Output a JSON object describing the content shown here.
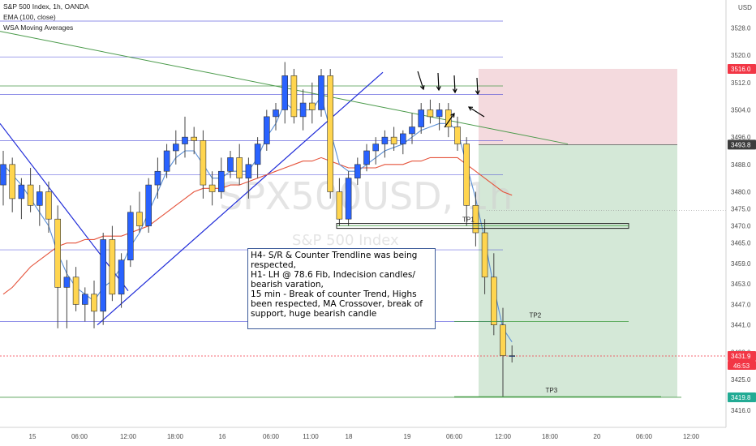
{
  "legend": {
    "title": "S&P 500 Index, 1h, OANDA",
    "line2": "EMA (100, close)",
    "line3": "WSA Moving Averages"
  },
  "watermark": {
    "symbol": "SPX500USD, 1h",
    "name": "S&P 500 Index"
  },
  "currency": "USD",
  "note_lines": [
    "H4- S/R & Counter Trendline was being",
    "respected,",
    "H1- LH @ 78.6 Fib, Indecision candles/",
    "bearish varation,",
    "15 min - Break of counter Trend, Highs",
    "been respected, MA Crossover, break of",
    "support, huge bearish candle"
  ],
  "price_tags": [
    {
      "label": "3516.0",
      "value": 3516.0,
      "bg": "#f23645",
      "fg": "#ffffff"
    },
    {
      "label": "3493.8",
      "value": 3493.8,
      "bg": "#3c3c3c",
      "fg": "#ffffff"
    },
    {
      "label": "3431.9",
      "value": 3431.9,
      "bg": "#f23645",
      "fg": "#ffffff",
      "sub": "46:53"
    },
    {
      "label": "3419.8",
      "value": 3419.8,
      "bg": "#22ab94",
      "fg": "#ffffff"
    }
  ],
  "targets": [
    {
      "label": "TP1",
      "value": 3470.0
    },
    {
      "label": "TP2",
      "value": 3442.0
    },
    {
      "label": "TP3",
      "value": 3420.0
    }
  ],
  "colors": {
    "bull_body": "#2962ff",
    "bear_body": "#ffd54f",
    "wick": "#444444",
    "profit_zone": "#cfe6d3",
    "loss_zone": "#f3d6da",
    "ema": "#e5533b",
    "wsa": "#5b8fd6",
    "counter_trend": "#4a9a4a",
    "trendline": "#1f2bd8",
    "hline": "#3b3bd6"
  },
  "chart_data": {
    "type": "candlestick",
    "ylim": [
      3411,
      3530
    ],
    "y_ticks": [
      3416.0,
      3425.0,
      3433.0,
      3441.0,
      3447.0,
      3453.0,
      3459.0,
      3465.0,
      3470.0,
      3475.0,
      3480.0,
      3488.0,
      3496.0,
      3504.0,
      3512.0,
      3520.0,
      3528.0
    ],
    "x_ticks": [
      "15",
      "06:00",
      "12:00",
      "18:00",
      "16",
      "06:00",
      "11:00",
      "18",
      "19",
      "06:00",
      "12:00",
      "18:00",
      "20",
      "06:00",
      "12:00"
    ],
    "candles": [
      {
        "o": 3482,
        "h": 3492,
        "l": 3476,
        "c": 3488
      },
      {
        "o": 3488,
        "h": 3490,
        "l": 3474,
        "c": 3478
      },
      {
        "o": 3478,
        "h": 3484,
        "l": 3472,
        "c": 3482
      },
      {
        "o": 3482,
        "h": 3487,
        "l": 3474,
        "c": 3476
      },
      {
        "o": 3476,
        "h": 3482,
        "l": 3470,
        "c": 3480
      },
      {
        "o": 3480,
        "h": 3483,
        "l": 3468,
        "c": 3472
      },
      {
        "o": 3472,
        "h": 3476,
        "l": 3440,
        "c": 3452
      },
      {
        "o": 3452,
        "h": 3460,
        "l": 3440,
        "c": 3455
      },
      {
        "o": 3455,
        "h": 3458,
        "l": 3445,
        "c": 3447
      },
      {
        "o": 3447,
        "h": 3452,
        "l": 3442,
        "c": 3450
      },
      {
        "o": 3450,
        "h": 3454,
        "l": 3440,
        "c": 3445
      },
      {
        "o": 3445,
        "h": 3468,
        "l": 3441,
        "c": 3466
      },
      {
        "o": 3466,
        "h": 3470,
        "l": 3448,
        "c": 3450
      },
      {
        "o": 3450,
        "h": 3462,
        "l": 3446,
        "c": 3460
      },
      {
        "o": 3460,
        "h": 3476,
        "l": 3458,
        "c": 3474
      },
      {
        "o": 3474,
        "h": 3480,
        "l": 3468,
        "c": 3470
      },
      {
        "o": 3470,
        "h": 3484,
        "l": 3468,
        "c": 3482
      },
      {
        "o": 3482,
        "h": 3490,
        "l": 3478,
        "c": 3486
      },
      {
        "o": 3486,
        "h": 3494,
        "l": 3484,
        "c": 3492
      },
      {
        "o": 3492,
        "h": 3498,
        "l": 3488,
        "c": 3494
      },
      {
        "o": 3494,
        "h": 3502,
        "l": 3490,
        "c": 3496
      },
      {
        "o": 3496,
        "h": 3499,
        "l": 3491,
        "c": 3495
      },
      {
        "o": 3495,
        "h": 3498,
        "l": 3478,
        "c": 3482
      },
      {
        "o": 3482,
        "h": 3486,
        "l": 3476,
        "c": 3480
      },
      {
        "o": 3480,
        "h": 3490,
        "l": 3478,
        "c": 3486
      },
      {
        "o": 3486,
        "h": 3492,
        "l": 3484,
        "c": 3490
      },
      {
        "o": 3490,
        "h": 3494,
        "l": 3482,
        "c": 3484
      },
      {
        "o": 3484,
        "h": 3490,
        "l": 3478,
        "c": 3488
      },
      {
        "o": 3488,
        "h": 3496,
        "l": 3484,
        "c": 3494
      },
      {
        "o": 3494,
        "h": 3504,
        "l": 3492,
        "c": 3502
      },
      {
        "o": 3502,
        "h": 3506,
        "l": 3498,
        "c": 3504
      },
      {
        "o": 3504,
        "h": 3518,
        "l": 3500,
        "c": 3514
      },
      {
        "o": 3514,
        "h": 3516,
        "l": 3500,
        "c": 3502
      },
      {
        "o": 3502,
        "h": 3510,
        "l": 3498,
        "c": 3506
      },
      {
        "o": 3506,
        "h": 3512,
        "l": 3500,
        "c": 3504
      },
      {
        "o": 3504,
        "h": 3516,
        "l": 3502,
        "c": 3514
      },
      {
        "o": 3514,
        "h": 3516,
        "l": 3478,
        "c": 3480
      },
      {
        "o": 3480,
        "h": 3484,
        "l": 3470,
        "c": 3472
      },
      {
        "o": 3472,
        "h": 3486,
        "l": 3470,
        "c": 3484
      },
      {
        "o": 3484,
        "h": 3490,
        "l": 3482,
        "c": 3488
      },
      {
        "o": 3488,
        "h": 3494,
        "l": 3486,
        "c": 3492
      },
      {
        "o": 3492,
        "h": 3496,
        "l": 3488,
        "c": 3494
      },
      {
        "o": 3494,
        "h": 3498,
        "l": 3490,
        "c": 3496
      },
      {
        "o": 3496,
        "h": 3499,
        "l": 3492,
        "c": 3494
      },
      {
        "o": 3494,
        "h": 3498,
        "l": 3491,
        "c": 3497
      },
      {
        "o": 3497,
        "h": 3503,
        "l": 3494,
        "c": 3499
      },
      {
        "o": 3499,
        "h": 3506,
        "l": 3497,
        "c": 3504
      },
      {
        "o": 3504,
        "h": 3507,
        "l": 3500,
        "c": 3502
      },
      {
        "o": 3502,
        "h": 3506,
        "l": 3498,
        "c": 3504
      },
      {
        "o": 3504,
        "h": 3506,
        "l": 3496,
        "c": 3499
      },
      {
        "o": 3499,
        "h": 3502,
        "l": 3492,
        "c": 3494
      },
      {
        "o": 3494,
        "h": 3496,
        "l": 3470,
        "c": 3476
      },
      {
        "o": 3476,
        "h": 3480,
        "l": 3464,
        "c": 3468
      },
      {
        "o": 3468,
        "h": 3472,
        "l": 3450,
        "c": 3455
      },
      {
        "o": 3455,
        "h": 3462,
        "l": 3438,
        "c": 3441
      },
      {
        "o": 3441,
        "h": 3446,
        "l": 3420,
        "c": 3432
      },
      {
        "o": 3432,
        "h": 3435,
        "l": 3430,
        "c": 3432
      }
    ],
    "lines": {
      "ema": [
        3450,
        3452,
        3455,
        3458,
        3460,
        3462,
        3464,
        3465,
        3465,
        3466,
        3466,
        3467,
        3467,
        3467,
        3468,
        3469,
        3470,
        3472,
        3474,
        3476,
        3478,
        3480,
        3481,
        3481,
        3481,
        3482,
        3482,
        3483,
        3484,
        3485,
        3486,
        3487,
        3488,
        3489,
        3489,
        3490,
        3489,
        3488,
        3487,
        3487,
        3487,
        3487,
        3488,
        3488,
        3488,
        3489,
        3489,
        3490,
        3490,
        3490,
        3490,
        3488,
        3486,
        3484,
        3482,
        3480,
        3479
      ],
      "wsa": [
        3488,
        3485,
        3482,
        3478,
        3474,
        3470,
        3462,
        3456,
        3452,
        3450,
        3448,
        3452,
        3454,
        3458,
        3464,
        3468,
        3474,
        3480,
        3486,
        3490,
        3492,
        3492,
        3488,
        3484,
        3484,
        3486,
        3486,
        3486,
        3490,
        3496,
        3500,
        3506,
        3504,
        3504,
        3504,
        3508,
        3498,
        3488,
        3486,
        3486,
        3488,
        3490,
        3492,
        3493,
        3494,
        3496,
        3498,
        3499,
        3500,
        3500,
        3498,
        3488,
        3478,
        3466,
        3452,
        3440,
        3436
      ]
    },
    "trade": {
      "entry": 3493.8,
      "stop": 3516.0,
      "target": 3419.8
    }
  }
}
